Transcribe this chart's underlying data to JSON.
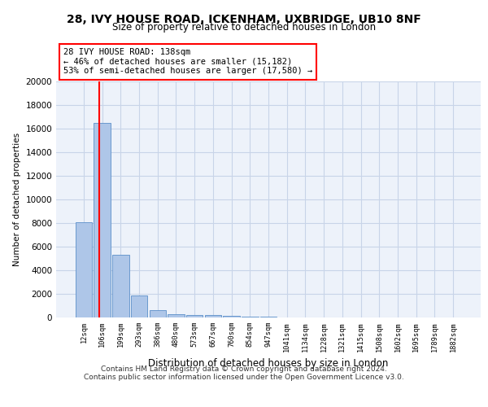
{
  "title_line1": "28, IVY HOUSE ROAD, ICKENHAM, UXBRIDGE, UB10 8NF",
  "title_line2": "Size of property relative to detached houses in London",
  "xlabel": "Distribution of detached houses by size in London",
  "ylabel": "Number of detached properties",
  "bar_labels": [
    "12sqm",
    "106sqm",
    "199sqm",
    "293sqm",
    "386sqm",
    "480sqm",
    "573sqm",
    "667sqm",
    "760sqm",
    "854sqm",
    "947sqm",
    "1041sqm",
    "1134sqm",
    "1228sqm",
    "1321sqm",
    "1415sqm",
    "1508sqm",
    "1602sqm",
    "1695sqm",
    "1789sqm",
    "1882sqm"
  ],
  "bar_values": [
    8050,
    16500,
    5300,
    1850,
    650,
    300,
    210,
    175,
    145,
    80,
    40,
    20,
    15,
    10,
    8,
    6,
    5,
    4,
    3,
    2,
    1
  ],
  "bar_color": "#aec6e8",
  "bar_edge_color": "#5b8fc9",
  "grid_color": "#c8d4e8",
  "background_color": "#edf2fa",
  "annotation_box_text": "28 IVY HOUSE ROAD: 138sqm\n← 46% of detached houses are smaller (15,182)\n53% of semi-detached houses are larger (17,580) →",
  "annotation_box_color": "white",
  "annotation_box_edge_color": "red",
  "footer_line1": "Contains HM Land Registry data © Crown copyright and database right 2024.",
  "footer_line2": "Contains public sector information licensed under the Open Government Licence v3.0.",
  "ylim": [
    0,
    20000
  ],
  "yticks": [
    0,
    2000,
    4000,
    6000,
    8000,
    10000,
    12000,
    14000,
    16000,
    18000,
    20000
  ]
}
